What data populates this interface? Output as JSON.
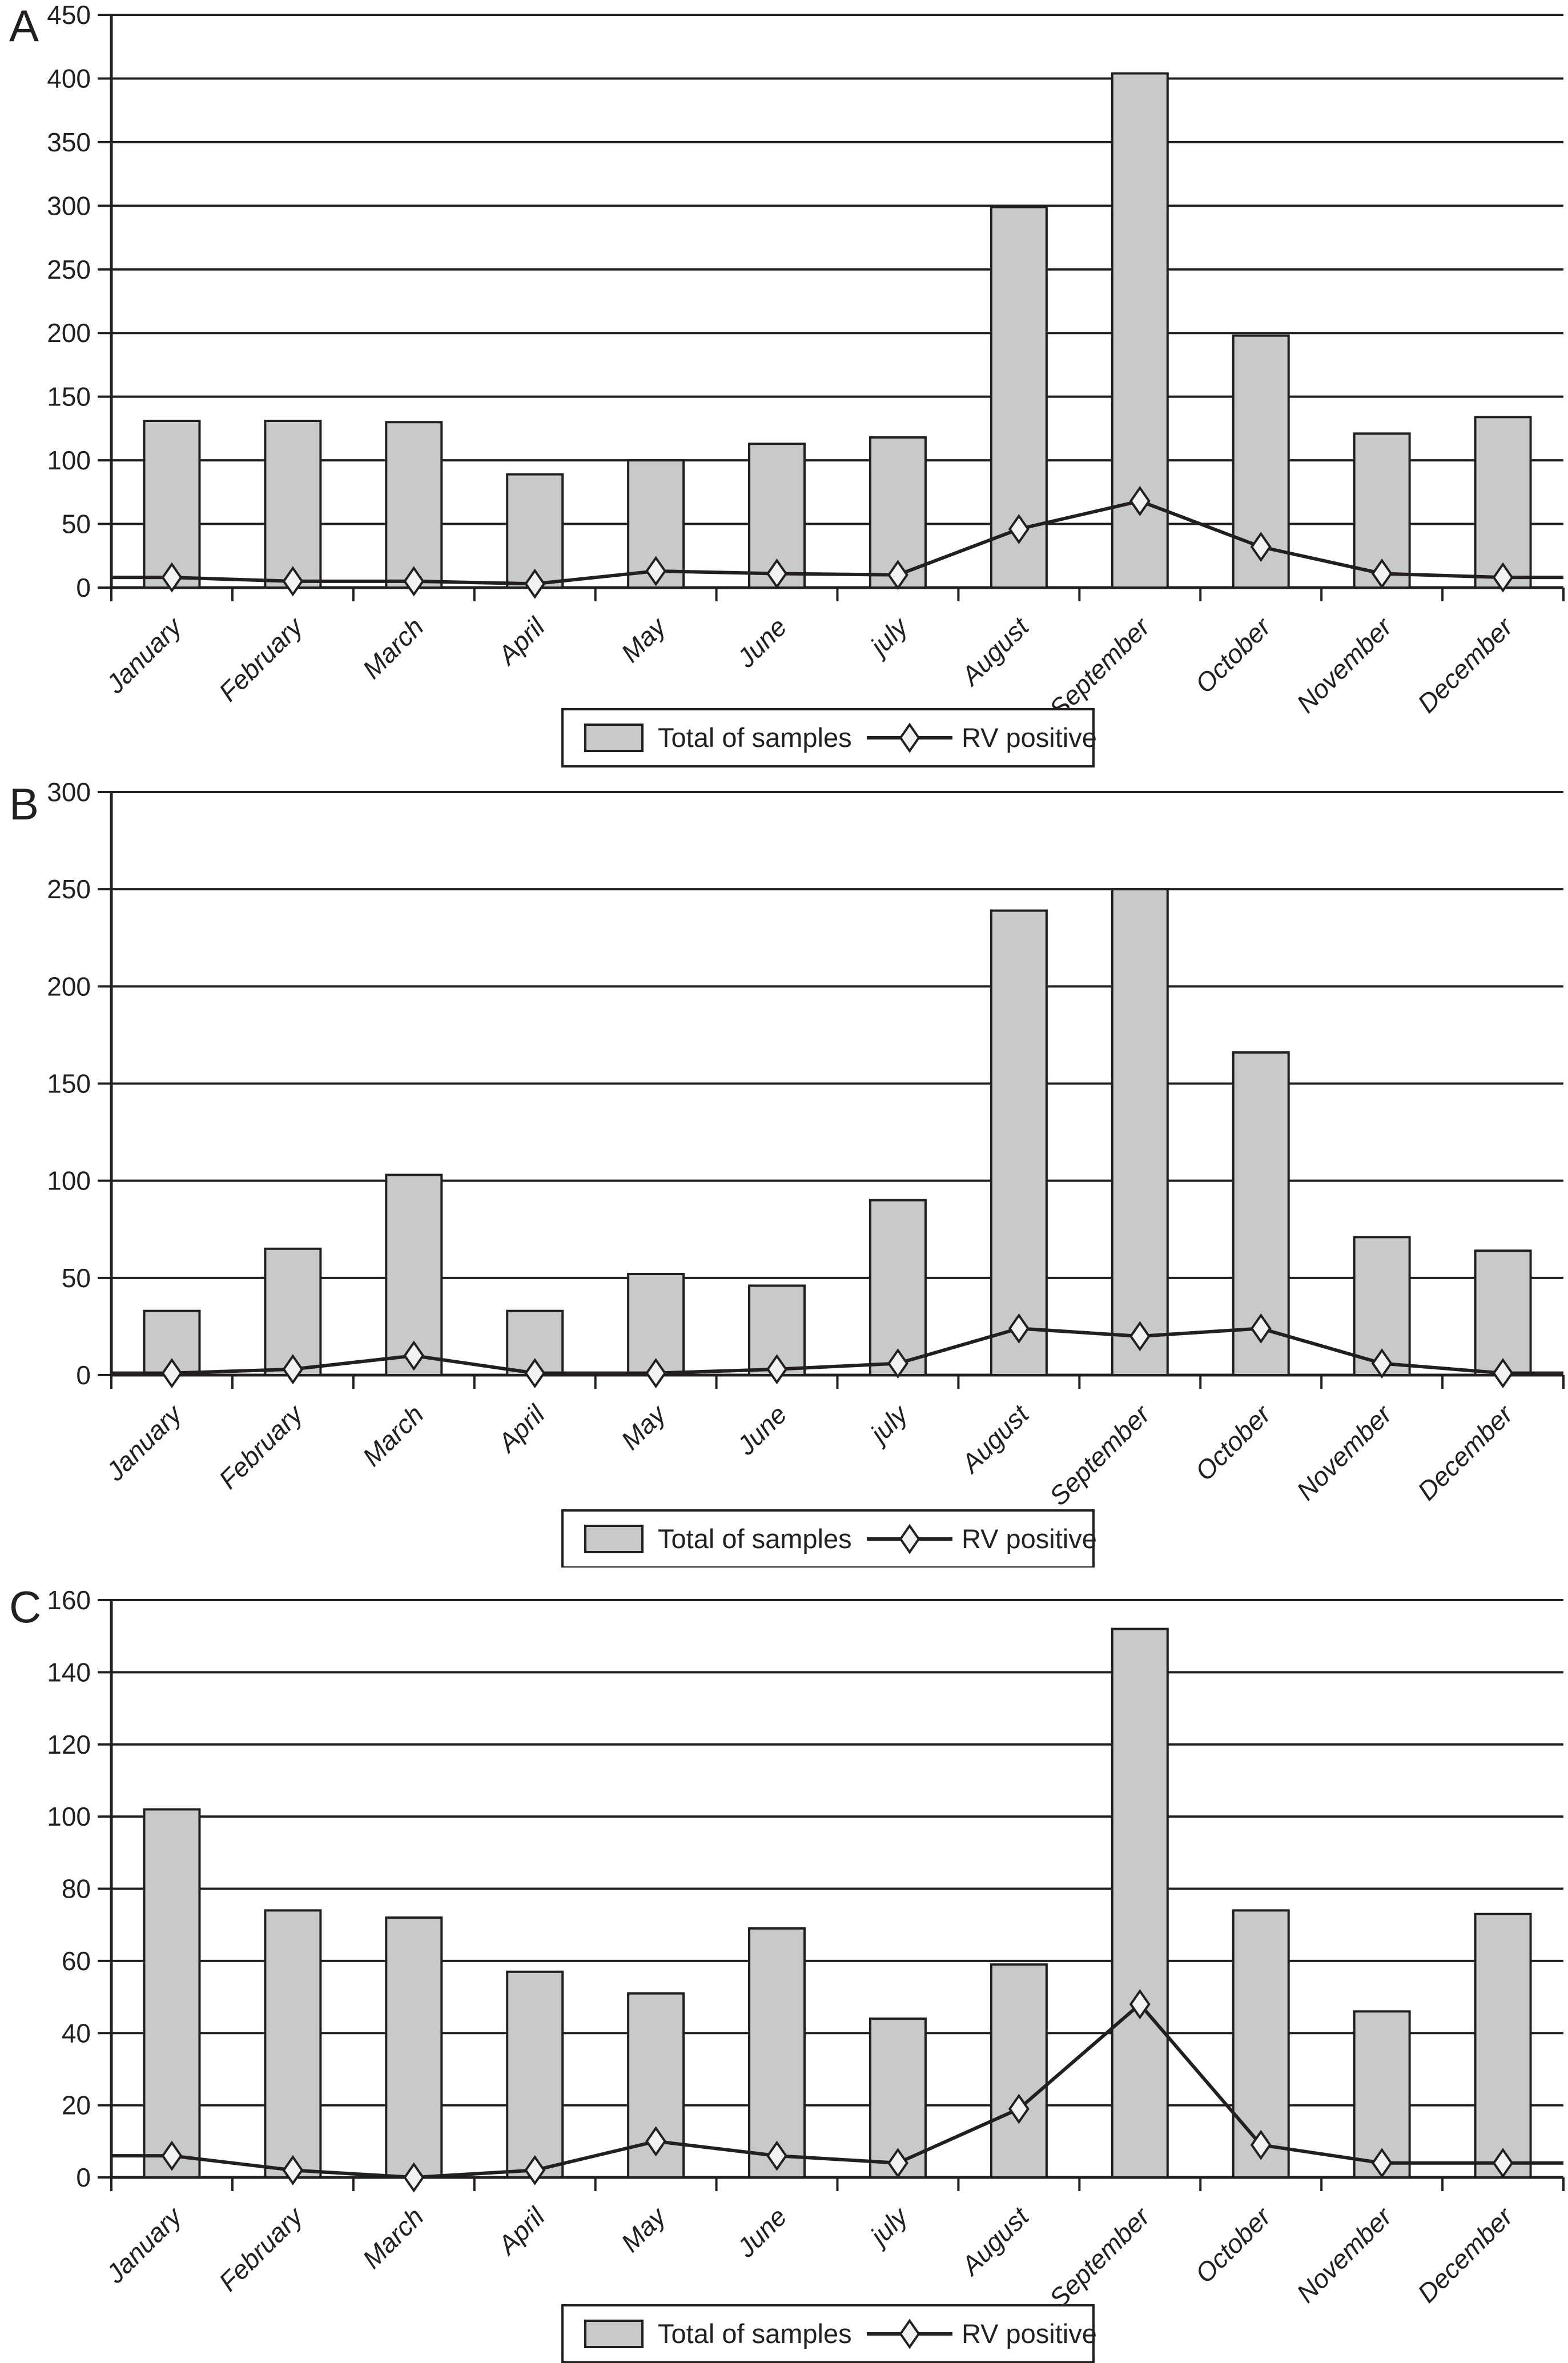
{
  "figure": {
    "description": "Three stacked monthly bar-and-line panels A, B, C showing total samples (bars) and RV positive counts (line with diamond markers)"
  },
  "panels": [
    {
      "label": "A"
    },
    {
      "label": "B"
    },
    {
      "label": "C"
    }
  ],
  "legend": {
    "samples_label": "Total of samples",
    "positive_label": "RV positive"
  },
  "months": [
    "January",
    "February",
    "March",
    "April",
    "May",
    "June",
    "july",
    "August",
    "September",
    "October",
    "November",
    "December"
  ],
  "colors": {
    "bar_fill": "#c8c9cb",
    "bar_stroke": "#231f20",
    "line": "#231f20",
    "marker_fill": "#f2f2f2",
    "marker_stroke": "#231f20",
    "grid": "#231f20",
    "text": "#231f20",
    "background": "#ffffff"
  },
  "chart_data": [
    {
      "panel": "A",
      "type": "bar",
      "categories": [
        "January",
        "February",
        "March",
        "April",
        "May",
        "June",
        "july",
        "August",
        "September",
        "October",
        "November",
        "December"
      ],
      "series": [
        {
          "name": "Total of samples",
          "type": "bar",
          "values": [
            131,
            131,
            130,
            89,
            100,
            113,
            118,
            299,
            404,
            198,
            121,
            134
          ]
        },
        {
          "name": "RV positive",
          "type": "line",
          "values": [
            8,
            5,
            5,
            3,
            13,
            11,
            10,
            46,
            68,
            32,
            11,
            8
          ]
        }
      ],
      "title": "",
      "xlabel": "",
      "ylabel": "",
      "ylim": [
        0,
        450
      ],
      "ytick_step": 50,
      "grid": true,
      "legend_position": "bottom"
    },
    {
      "panel": "B",
      "type": "bar",
      "categories": [
        "January",
        "February",
        "March",
        "April",
        "May",
        "June",
        "july",
        "August",
        "September",
        "October",
        "November",
        "December"
      ],
      "series": [
        {
          "name": "Total of samples",
          "type": "bar",
          "values": [
            33,
            65,
            103,
            33,
            52,
            46,
            90,
            239,
            250,
            166,
            71,
            64
          ]
        },
        {
          "name": "RV positive",
          "type": "line",
          "values": [
            1,
            3,
            10,
            1,
            1,
            3,
            6,
            24,
            20,
            24,
            6,
            1
          ]
        }
      ],
      "title": "",
      "xlabel": "",
      "ylabel": "",
      "ylim": [
        0,
        300
      ],
      "ytick_step": 50,
      "grid": true,
      "legend_position": "bottom"
    },
    {
      "panel": "C",
      "type": "bar",
      "categories": [
        "January",
        "February",
        "March",
        "April",
        "May",
        "June",
        "july",
        "August",
        "September",
        "October",
        "November",
        "December"
      ],
      "series": [
        {
          "name": "Total of samples",
          "type": "bar",
          "values": [
            102,
            74,
            72,
            57,
            51,
            69,
            44,
            59,
            152,
            74,
            46,
            73
          ]
        },
        {
          "name": "RV positive",
          "type": "line",
          "values": [
            6,
            2,
            0,
            2,
            10,
            6,
            4,
            19,
            48,
            9,
            4,
            4
          ]
        }
      ],
      "title": "",
      "xlabel": "",
      "ylabel": "",
      "ylim": [
        0,
        160
      ],
      "ytick_step": 20,
      "grid": true,
      "legend_position": "bottom"
    }
  ]
}
